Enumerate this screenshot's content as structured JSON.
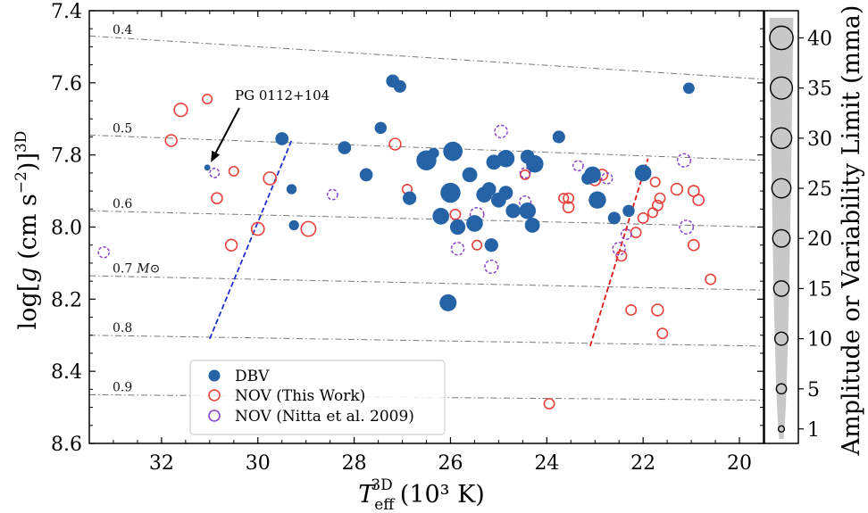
{
  "chart_data": {
    "type": "scatter",
    "xlabel": "T_eff^3D (10^3 K)",
    "xlabel_main": "T",
    "xlabel_sub": "eff",
    "xlabel_sup": "3D",
    "xlabel_units": "(10³ K)",
    "ylabel": "log[g (cm s^-2)]^3D",
    "ylabel_parts": {
      "a": "log[",
      "g": "g",
      "b": " (cm s",
      "exp": "−2",
      "c": ")]",
      "sup": "3D"
    },
    "xlim": [
      33.5,
      19.5
    ],
    "ylim": [
      7.4,
      8.6
    ],
    "y_inverted": true,
    "x_ticks": [
      32,
      30,
      28,
      26,
      24,
      22,
      20
    ],
    "x_tick_labels": [
      "32",
      "30",
      "28",
      "26",
      "24",
      "22",
      "20"
    ],
    "y_ticks": [
      7.4,
      7.6,
      7.8,
      8.0,
      8.2,
      8.4,
      8.6
    ],
    "y_tick_labels": [
      "7.4",
      "7.6",
      "7.8",
      "8.0",
      "8.2",
      "8.4",
      "8.6"
    ],
    "colors": {
      "dbv": "#2563a6",
      "nov_this": "#e8413c",
      "nov_nitta": "#8a45c9",
      "mass_line": "#777777",
      "colorbar_fill": "#c8c8c8"
    },
    "mass_tracks": [
      {
        "label": "0.4",
        "points": [
          [
            33.5,
            7.47
          ],
          [
            19.5,
            7.59
          ]
        ]
      },
      {
        "label": "0.5",
        "points": [
          [
            33.5,
            7.745
          ],
          [
            19.5,
            7.815
          ]
        ]
      },
      {
        "label": "0.6",
        "points": [
          [
            33.5,
            7.955
          ],
          [
            19.5,
            8.0
          ]
        ]
      },
      {
        "label": "0.7",
        "label_extra": "M⊙",
        "points": [
          [
            33.5,
            8.135
          ],
          [
            19.5,
            8.175
          ]
        ]
      },
      {
        "label": "0.8",
        "points": [
          [
            33.5,
            8.3
          ],
          [
            19.5,
            8.33
          ]
        ]
      },
      {
        "label": "0.9",
        "points": [
          [
            33.5,
            8.465
          ],
          [
            19.5,
            8.48
          ]
        ]
      }
    ],
    "instability_edges": [
      {
        "name": "blue edge",
        "color": "#1f2fd0",
        "points": [
          [
            31.0,
            8.31
          ],
          [
            29.3,
            7.76
          ]
        ]
      },
      {
        "name": "red edge",
        "color": "#e01818",
        "points": [
          [
            23.1,
            8.33
          ],
          [
            21.9,
            7.81
          ]
        ]
      }
    ],
    "series": [
      {
        "name": "DBV",
        "style": "filled",
        "points": [
          [
            31.05,
            7.835,
            1
          ],
          [
            29.5,
            7.755,
            10
          ],
          [
            29.3,
            7.895,
            5
          ],
          [
            29.25,
            7.995,
            5
          ],
          [
            28.2,
            7.78,
            10
          ],
          [
            27.75,
            7.855,
            10
          ],
          [
            27.45,
            7.725,
            8
          ],
          [
            27.2,
            7.595,
            10
          ],
          [
            27.05,
            7.61,
            9
          ],
          [
            26.85,
            7.92,
            11
          ],
          [
            26.5,
            7.815,
            28
          ],
          [
            26.35,
            7.795,
            6
          ],
          [
            26.0,
            7.905,
            28
          ],
          [
            26.2,
            7.97,
            18
          ],
          [
            25.95,
            7.79,
            26
          ],
          [
            25.85,
            8.0,
            15
          ],
          [
            25.6,
            7.855,
            14
          ],
          [
            25.5,
            7.99,
            18
          ],
          [
            25.3,
            7.91,
            16
          ],
          [
            25.2,
            7.895,
            12
          ],
          [
            25.15,
            8.05,
            11
          ],
          [
            25.1,
            7.82,
            14
          ],
          [
            25.0,
            7.925,
            14
          ],
          [
            24.85,
            7.81,
            20
          ],
          [
            24.85,
            7.905,
            12
          ],
          [
            24.7,
            7.955,
            13
          ],
          [
            24.4,
            7.955,
            18
          ],
          [
            24.4,
            7.805,
            12
          ],
          [
            24.25,
            7.825,
            20
          ],
          [
            24.3,
            7.995,
            14
          ],
          [
            23.75,
            7.75,
            9
          ],
          [
            23.15,
            7.865,
            9
          ],
          [
            23.05,
            7.855,
            18
          ],
          [
            22.95,
            7.925,
            20
          ],
          [
            22.6,
            7.975,
            9
          ],
          [
            22.3,
            7.955,
            8
          ],
          [
            22.0,
            7.85,
            18
          ],
          [
            21.05,
            7.615,
            7
          ],
          [
            26.05,
            8.21,
            19
          ]
        ]
      },
      {
        "name": "NOV (This Work)",
        "style": "open",
        "points": [
          [
            31.6,
            7.675,
            10
          ],
          [
            31.05,
            7.645,
            4
          ],
          [
            31.8,
            7.76,
            7
          ],
          [
            30.85,
            7.92,
            6
          ],
          [
            30.5,
            7.845,
            4
          ],
          [
            30.55,
            8.05,
            7
          ],
          [
            30.0,
            8.005,
            9
          ],
          [
            29.75,
            7.865,
            9
          ],
          [
            28.95,
            8.005,
            13
          ],
          [
            27.15,
            7.77,
            7
          ],
          [
            26.9,
            7.895,
            4
          ],
          [
            25.9,
            7.965,
            5
          ],
          [
            25.45,
            8.05,
            4
          ],
          [
            24.45,
            7.855,
            4
          ],
          [
            23.65,
            7.92,
            4
          ],
          [
            23.55,
            7.92,
            5
          ],
          [
            23.55,
            7.945,
            6
          ],
          [
            23.0,
            7.87,
            6
          ],
          [
            22.85,
            7.855,
            6
          ],
          [
            22.45,
            8.08,
            5
          ],
          [
            22.25,
            8.23,
            5
          ],
          [
            22.15,
            8.015,
            5
          ],
          [
            22.0,
            7.975,
            5
          ],
          [
            21.75,
            7.875,
            4
          ],
          [
            21.7,
            7.94,
            5
          ],
          [
            21.65,
            7.92,
            5
          ],
          [
            21.8,
            7.96,
            4
          ],
          [
            21.6,
            8.295,
            5
          ],
          [
            21.7,
            8.23,
            7
          ],
          [
            21.3,
            7.895,
            7
          ],
          [
            20.95,
            7.9,
            6
          ],
          [
            20.85,
            7.925,
            6
          ],
          [
            20.95,
            8.05,
            6
          ],
          [
            20.6,
            8.145,
            5
          ],
          [
            23.95,
            8.49,
            5
          ]
        ]
      },
      {
        "name": "NOV (Nitta et al. 2009)",
        "style": "open-dashed",
        "points": [
          [
            33.2,
            8.07,
            6
          ],
          [
            30.9,
            7.85,
            4
          ],
          [
            28.45,
            7.91,
            5
          ],
          [
            25.85,
            8.06,
            9
          ],
          [
            25.45,
            7.965,
            11
          ],
          [
            25.15,
            8.11,
            10
          ],
          [
            24.95,
            7.735,
            9
          ],
          [
            24.45,
            7.85,
            5
          ],
          [
            24.45,
            7.93,
            7
          ],
          [
            23.35,
            7.83,
            5
          ],
          [
            22.75,
            7.865,
            6
          ],
          [
            22.5,
            8.06,
            9
          ],
          [
            21.15,
            7.815,
            10
          ],
          [
            21.1,
            8.0,
            11
          ],
          [
            22.35,
            8.02,
            5
          ]
        ]
      }
    ],
    "legend": {
      "placement": "lower-left",
      "entries": [
        "DBV",
        "NOV (This Work)",
        "NOV (Nitta et al. 2009)"
      ]
    },
    "annotations": [
      {
        "text": "PG 0112+104",
        "target": [
          31.05,
          7.835
        ]
      }
    ],
    "colorbar": {
      "label": "Amplitude or Variability Limit (mma)",
      "ticks": [
        1,
        5,
        10,
        15,
        20,
        25,
        30,
        35,
        40
      ],
      "tick_labels": [
        "1",
        "5",
        "10",
        "15",
        "20",
        "25",
        "30",
        "35",
        "40"
      ],
      "range": [
        0,
        42
      ]
    }
  }
}
